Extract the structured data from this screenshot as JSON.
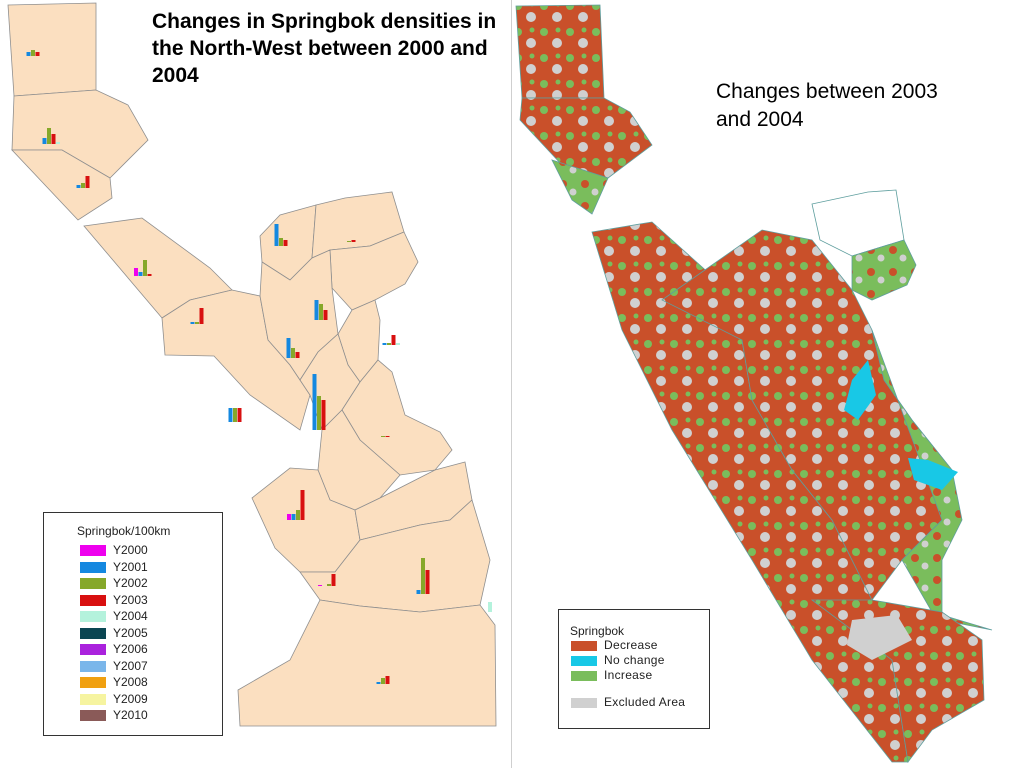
{
  "left_map": {
    "title": "Changes in Springbok densities in the North-West between 2000 and 2004",
    "legend": {
      "title": "Springbok/100km",
      "items": [
        {
          "label": "Y2000",
          "color": "#ee00ee"
        },
        {
          "label": "Y2001",
          "color": "#1488e0"
        },
        {
          "label": "Y2002",
          "color": "#86a82a"
        },
        {
          "label": "Y2003",
          "color": "#d81010"
        },
        {
          "label": "Y2004",
          "color": "#b4f2dc"
        },
        {
          "label": "Y2005",
          "color": "#0a4652"
        },
        {
          "label": "Y2006",
          "color": "#aa22dd"
        },
        {
          "label": "Y2007",
          "color": "#7ab6ea"
        },
        {
          "label": "Y2008",
          "color": "#f0a010"
        },
        {
          "label": "Y2009",
          "color": "#f6f4a0"
        },
        {
          "label": "Y2010",
          "color": "#8a5a58"
        }
      ]
    },
    "land_color": "#fbdfc0"
  },
  "right_map": {
    "title": "Changes between 2003 and 2004",
    "legend": {
      "title": "Springbok",
      "items": [
        {
          "label": "Decrease",
          "color": "#c9502a"
        },
        {
          "label": "No change",
          "color": "#18c8e6"
        },
        {
          "label": "Increase",
          "color": "#7abd5c"
        },
        {
          "label": "Excluded Area",
          "color": "#d0d0d0"
        }
      ]
    }
  }
}
